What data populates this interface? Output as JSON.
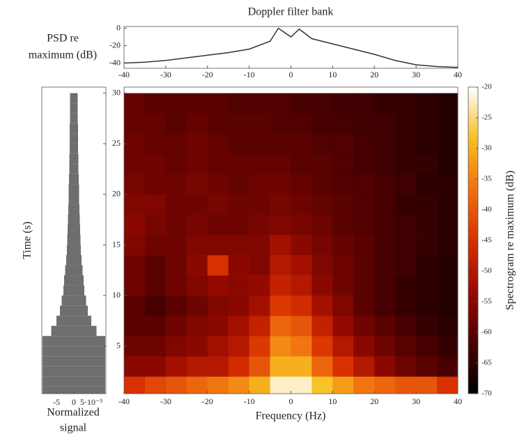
{
  "chart_data": [
    {
      "type": "line",
      "title": "Doppler filter bank",
      "ylabel": [
        "PSD re",
        "maximum (dB)"
      ],
      "color": "#333333",
      "x": [
        -40,
        -35,
        -30,
        -25,
        -20,
        -15,
        -10,
        -5,
        -3,
        0,
        2,
        5,
        10,
        15,
        20,
        25,
        30,
        35,
        40
      ],
      "values": [
        -40,
        -39,
        -37,
        -34,
        -31,
        -28,
        -24,
        -15,
        0,
        -10,
        -1,
        -12,
        -18,
        -24,
        -30,
        -37,
        -42,
        -44,
        -45
      ],
      "xlim": [
        -40,
        40
      ],
      "xticks": [
        -40,
        -30,
        -20,
        -10,
        0,
        10,
        20,
        30,
        40
      ],
      "ylim": [
        -46,
        2
      ],
      "yticks": [
        -40,
        -20,
        0
      ]
    },
    {
      "type": "bar",
      "xlabel": [
        "Normalized",
        "signal"
      ],
      "color": "#6e6e6e",
      "x": [
        0.5,
        1.5,
        2.5,
        3.5,
        4.5,
        5.5,
        6.5,
        7.5,
        8.5,
        9.5,
        10.5,
        11.5,
        12.5,
        13.5,
        14.5,
        15.5,
        16.5,
        17.5,
        18.5,
        19.5,
        20.5,
        21.5,
        22.5,
        23.5,
        24.5,
        25.5,
        26.5,
        27.5,
        28.5,
        29.5
      ],
      "values": [
        0.009,
        0.009,
        0.009,
        0.009,
        0.009,
        0.009,
        0.0065,
        0.005,
        0.004,
        0.0035,
        0.003,
        0.0028,
        0.0025,
        0.0022,
        0.002,
        0.0019,
        0.0018,
        0.0017,
        0.0016,
        0.0015,
        0.0015,
        0.0014,
        0.0013,
        0.0013,
        0.0012,
        0.0012,
        0.0012,
        0.0011,
        0.0011,
        0.0011
      ],
      "xlim": [
        -0.0092,
        0.0092
      ],
      "xticks": [
        {
          "value": -0.005,
          "label": "-5"
        },
        0,
        {
          "value": 0.005,
          "label": "5·10⁻³"
        }
      ],
      "ylim": [
        0.3,
        30.6
      ]
    },
    {
      "type": "heatmap",
      "xlabel": "Frequency (Hz)",
      "ylabel": "Time (s)",
      "colorbar_label": "Spectrogram re maximum (dB)",
      "colormap": [
        "#000000",
        "#4a0000",
        "#9a0a00",
        "#d83000",
        "#f07010",
        "#f8c020",
        "#ffffff"
      ],
      "x": [
        -37.5,
        -32.5,
        -27.5,
        -22.5,
        -17.5,
        -12.5,
        -7.5,
        -2.5,
        2.5,
        7.5,
        12.5,
        17.5,
        22.5,
        27.5,
        32.5,
        37.5
      ],
      "y": [
        1,
        3,
        5,
        7,
        9,
        11,
        13,
        15,
        17,
        19,
        21,
        23,
        25,
        27,
        29
      ],
      "z": [
        [
          -45,
          -42,
          -40,
          -38,
          -36,
          -34,
          -30,
          -22,
          -22,
          -28,
          -32,
          -36,
          -38,
          -40,
          -40,
          -45
        ],
        [
          -55,
          -55,
          -52,
          -50,
          -50,
          -46,
          -40,
          -30,
          -30,
          -38,
          -45,
          -50,
          -55,
          -58,
          -60,
          -62
        ],
        [
          -58,
          -58,
          -56,
          -55,
          -52,
          -50,
          -44,
          -34,
          -36,
          -44,
          -50,
          -55,
          -58,
          -60,
          -62,
          -64
        ],
        [
          -60,
          -60,
          -58,
          -56,
          -55,
          -52,
          -48,
          -38,
          -40,
          -48,
          -54,
          -58,
          -60,
          -62,
          -64,
          -65
        ],
        [
          -60,
          -62,
          -60,
          -58,
          -56,
          -55,
          -52,
          -44,
          -46,
          -52,
          -56,
          -60,
          -62,
          -64,
          -65,
          -66
        ],
        [
          -58,
          -60,
          -58,
          -56,
          -54,
          -55,
          -54,
          -48,
          -50,
          -55,
          -58,
          -60,
          -62,
          -64,
          -65,
          -66
        ],
        [
          -58,
          -60,
          -58,
          -55,
          -45,
          -55,
          -56,
          -50,
          -52,
          -56,
          -58,
          -60,
          -62,
          -63,
          -65,
          -66
        ],
        [
          -56,
          -58,
          -58,
          -56,
          -56,
          -56,
          -56,
          -52,
          -55,
          -57,
          -59,
          -60,
          -62,
          -63,
          -64,
          -65
        ],
        [
          -55,
          -57,
          -58,
          -57,
          -58,
          -58,
          -57,
          -56,
          -57,
          -58,
          -60,
          -61,
          -62,
          -63,
          -64,
          -65
        ],
        [
          -56,
          -56,
          -58,
          -58,
          -57,
          -58,
          -58,
          -57,
          -58,
          -59,
          -60,
          -61,
          -62,
          -64,
          -64,
          -65
        ],
        [
          -57,
          -58,
          -58,
          -57,
          -58,
          -59,
          -58,
          -58,
          -59,
          -60,
          -61,
          -61,
          -62,
          -63,
          -65,
          -65
        ],
        [
          -58,
          -58,
          -59,
          -58,
          -59,
          -59,
          -59,
          -59,
          -60,
          -60,
          -61,
          -62,
          -63,
          -64,
          -64,
          -66
        ],
        [
          -58,
          -59,
          -59,
          -58,
          -59,
          -60,
          -60,
          -60,
          -60,
          -61,
          -61,
          -62,
          -63,
          -64,
          -65,
          -66
        ],
        [
          -59,
          -59,
          -60,
          -59,
          -60,
          -60,
          -60,
          -61,
          -61,
          -62,
          -62,
          -63,
          -63,
          -64,
          -65,
          -66
        ],
        [
          -59,
          -60,
          -60,
          -60,
          -60,
          -61,
          -61,
          -61,
          -62,
          -62,
          -63,
          -63,
          -64,
          -64,
          -65,
          -66
        ]
      ],
      "xlim": [
        -40,
        40
      ],
      "xticks": [
        -40,
        -30,
        -20,
        -10,
        0,
        10,
        20,
        30,
        40
      ],
      "ylim": [
        0.3,
        30.6
      ],
      "yticks": [
        5,
        10,
        15,
        20,
        25,
        30
      ],
      "zlim": [
        -70,
        -20
      ],
      "zticks": [
        -20,
        -25,
        -30,
        -35,
        -40,
        -45,
        -50,
        -55,
        -60,
        -65,
        -70
      ]
    }
  ]
}
